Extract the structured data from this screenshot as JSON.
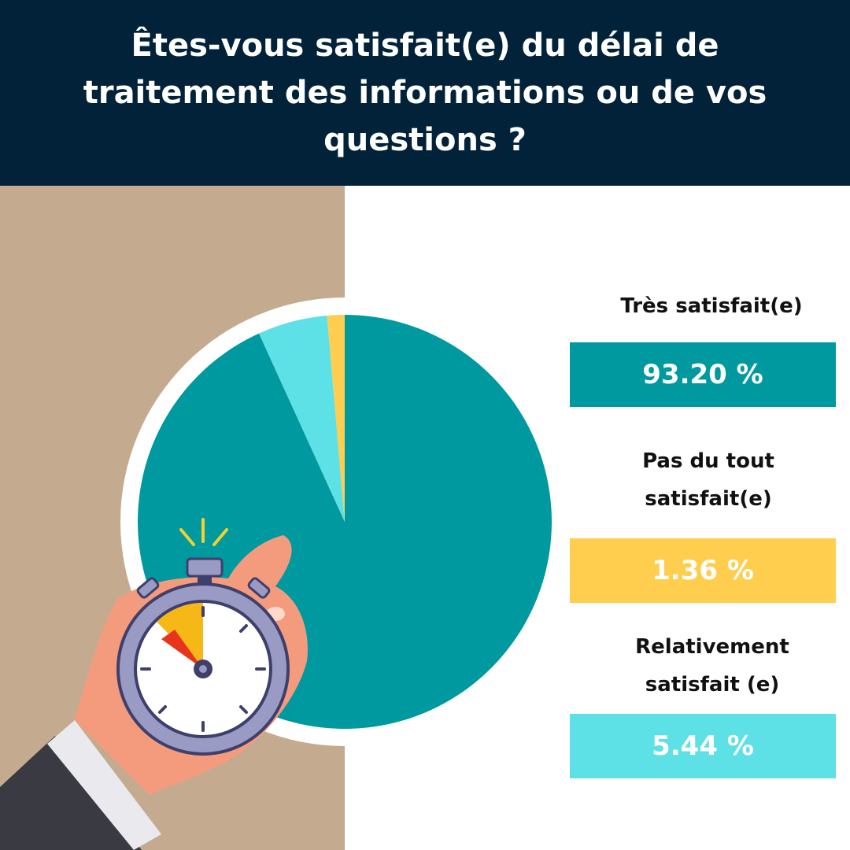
{
  "title": "Êtes-vous satisfait(e) du délai de traitement des informations ou de vos questions ?",
  "colors": {
    "header_bg": "#02223a",
    "left_panel": "#c4ab8f",
    "tres_satisfait": "#00999f",
    "pas_du_tout": "#ffce4f",
    "relativement": "#5ee1e6"
  },
  "legend": [
    {
      "label": "Très satisfait(e)",
      "value_text": "93.20 %"
    },
    {
      "label": "Pas du tout satisfait(e)",
      "value_text": "1.36 %"
    },
    {
      "label": "Relativement satisfait (e)",
      "value_text": "5.44 %"
    }
  ],
  "illustration": {
    "name": "hand-holding-stopwatch"
  },
  "chart_data": {
    "type": "pie",
    "title": "Êtes-vous satisfait(e) du délai de traitement des informations ou de vos questions ?",
    "slices": [
      {
        "label": "Très satisfait(e)",
        "value": 93.2,
        "color": "#00999f"
      },
      {
        "label": "Relativement satisfait (e)",
        "value": 5.44,
        "color": "#5ee1e6"
      },
      {
        "label": "Pas du tout satisfait(e)",
        "value": 1.36,
        "color": "#ffce4f"
      }
    ],
    "legend_position": "right"
  }
}
